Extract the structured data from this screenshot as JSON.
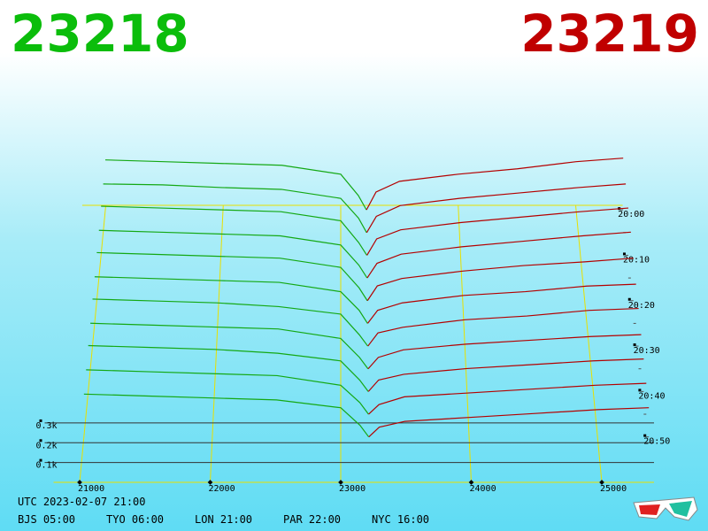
{
  "header": {
    "bid": 23218,
    "ask": 23219
  },
  "chart_data": {
    "type": "depth3d",
    "bid_color": "#14a814",
    "ask_color": "#b40000",
    "floor_color": "#e8e000",
    "xlim": [
      20800,
      25400
    ],
    "xticks": [
      21000,
      22000,
      23000,
      24000,
      25000
    ],
    "ylim": [
      0,
      1.4
    ],
    "yticks": [
      {
        "value": 0.1,
        "label": "0.1k"
      },
      {
        "value": 0.2,
        "label": "0.2k"
      },
      {
        "value": 0.3,
        "label": "0.3k"
      }
    ],
    "zlim": [
      -1,
      60
    ],
    "zticks": [
      {
        "value": 0,
        "label": "20:00"
      },
      {
        "value": 10,
        "label": "20:10"
      },
      {
        "value": 20,
        "label": "20:20"
      },
      {
        "value": 30,
        "label": "20:30"
      },
      {
        "value": 40,
        "label": "20:40"
      },
      {
        "value": 50,
        "label": "20:50"
      }
    ],
    "bid_prices": [
      21000,
      21500,
      22000,
      22500,
      23000,
      23150,
      23218
    ],
    "ask_prices": [
      23219,
      23300,
      23500,
      24000,
      24500,
      25000,
      25400
    ],
    "snapshots": [
      {
        "t": 0,
        "bids": [
          0.28,
          0.27,
          0.26,
          0.25,
          0.2,
          0.08,
          0
        ],
        "asks": [
          0,
          0.1,
          0.16,
          0.2,
          0.23,
          0.27,
          0.29
        ]
      },
      {
        "t": 5,
        "bids": [
          0.27,
          0.265,
          0.25,
          0.24,
          0.19,
          0.08,
          0
        ],
        "asks": [
          0,
          0.09,
          0.15,
          0.19,
          0.22,
          0.25,
          0.27
        ]
      },
      {
        "t": 10,
        "bids": [
          0.27,
          0.26,
          0.25,
          0.24,
          0.19,
          0.07,
          0
        ],
        "asks": [
          0,
          0.09,
          0.14,
          0.18,
          0.21,
          0.24,
          0.26
        ]
      },
      {
        "t": 15,
        "bids": [
          0.26,
          0.25,
          0.24,
          0.23,
          0.18,
          0.07,
          0
        ],
        "asks": [
          0,
          0.08,
          0.13,
          0.17,
          0.2,
          0.23,
          0.25
        ]
      },
      {
        "t": 20,
        "bids": [
          0.26,
          0.25,
          0.24,
          0.23,
          0.18,
          0.07,
          0
        ],
        "asks": [
          0,
          0.08,
          0.12,
          0.16,
          0.19,
          0.21,
          0.23
        ]
      },
      {
        "t": 25,
        "bids": [
          0.25,
          0.24,
          0.23,
          0.22,
          0.17,
          0.07,
          0
        ],
        "asks": [
          0,
          0.07,
          0.11,
          0.15,
          0.17,
          0.2,
          0.21
        ]
      },
      {
        "t": 30,
        "bids": [
          0.25,
          0.24,
          0.23,
          0.21,
          0.17,
          0.06,
          0
        ],
        "asks": [
          0,
          0.07,
          0.1,
          0.14,
          0.16,
          0.19,
          0.2
        ]
      },
      {
        "t": 35,
        "bids": [
          0.24,
          0.23,
          0.22,
          0.21,
          0.16,
          0.06,
          0
        ],
        "asks": [
          0,
          0.06,
          0.1,
          0.13,
          0.15,
          0.17,
          0.18
        ]
      },
      {
        "t": 40,
        "bids": [
          0.24,
          0.23,
          0.22,
          0.2,
          0.16,
          0.06,
          0
        ],
        "asks": [
          0,
          0.06,
          0.09,
          0.12,
          0.14,
          0.16,
          0.17
        ]
      },
      {
        "t": 45,
        "bids": [
          0.23,
          0.22,
          0.21,
          0.2,
          0.15,
          0.06,
          0
        ],
        "asks": [
          0,
          0.05,
          0.09,
          0.11,
          0.13,
          0.15,
          0.16
        ]
      },
      {
        "t": 50,
        "bids": [
          0.22,
          0.21,
          0.2,
          0.19,
          0.15,
          0.06,
          0
        ],
        "asks": [
          0,
          0.05,
          0.08,
          0.1,
          0.12,
          0.14,
          0.15
        ]
      }
    ]
  },
  "footer": {
    "utc": "UTC 2023-02-07 21:00",
    "zones": [
      "BJS 05:00",
      "TYO 06:00",
      "LON 21:00",
      "PAR 22:00",
      "NYC 16:00"
    ]
  }
}
